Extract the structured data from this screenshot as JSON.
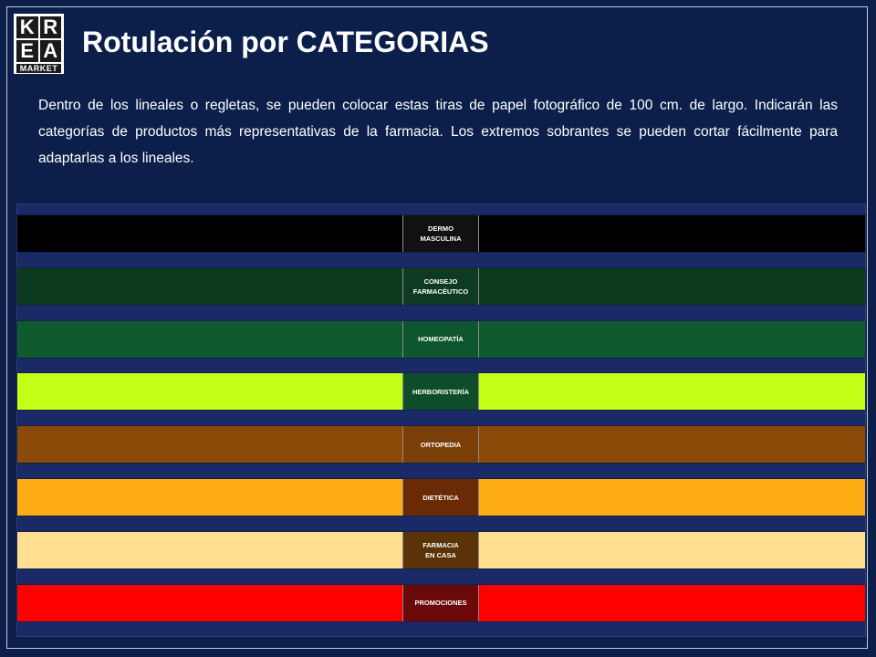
{
  "header": {
    "logo": {
      "letters": [
        "K",
        "R",
        "E",
        "A"
      ],
      "word": "MARKET"
    },
    "title": "Rotulación por CATEGORIAS"
  },
  "intro": "Dentro de los lineales o regletas, se pueden colocar estas tiras de papel fotográfico de 100 cm. de largo. Indicarán las categorías de productos más representativas de la farmacia. Los extremos sobrantes se pueden cortar fácilmente para adaptarlas a los lineales.",
  "strips": [
    {
      "label": "DERMO\nMASCULINA",
      "color": "#000000",
      "label_bg": "#111111"
    },
    {
      "label": "CONSEJO\nFARMACÉUTICO",
      "color": "#0b3a1f",
      "label_bg": "#0e3a22"
    },
    {
      "label": "HOMEOPATÍA",
      "color": "#0f5a2e",
      "label_bg": "#0f5530"
    },
    {
      "label": "HERBORISTERÍA",
      "color": "#c2ff16",
      "label_bg": "#0f4d2a"
    },
    {
      "label": "ORTOPEDIA",
      "color": "#8b4a07",
      "label_bg": "#7a3f06"
    },
    {
      "label": "DIETÉTICA",
      "color": "#ffad14",
      "label_bg": "#6a2a05"
    },
    {
      "label": "FARMACIA\nEN CASA",
      "color": "#ffdf90",
      "label_bg": "#5a3308"
    },
    {
      "label": "PROMOCIONES",
      "color": "#ff0000",
      "label_bg": "#6b0808"
    }
  ]
}
